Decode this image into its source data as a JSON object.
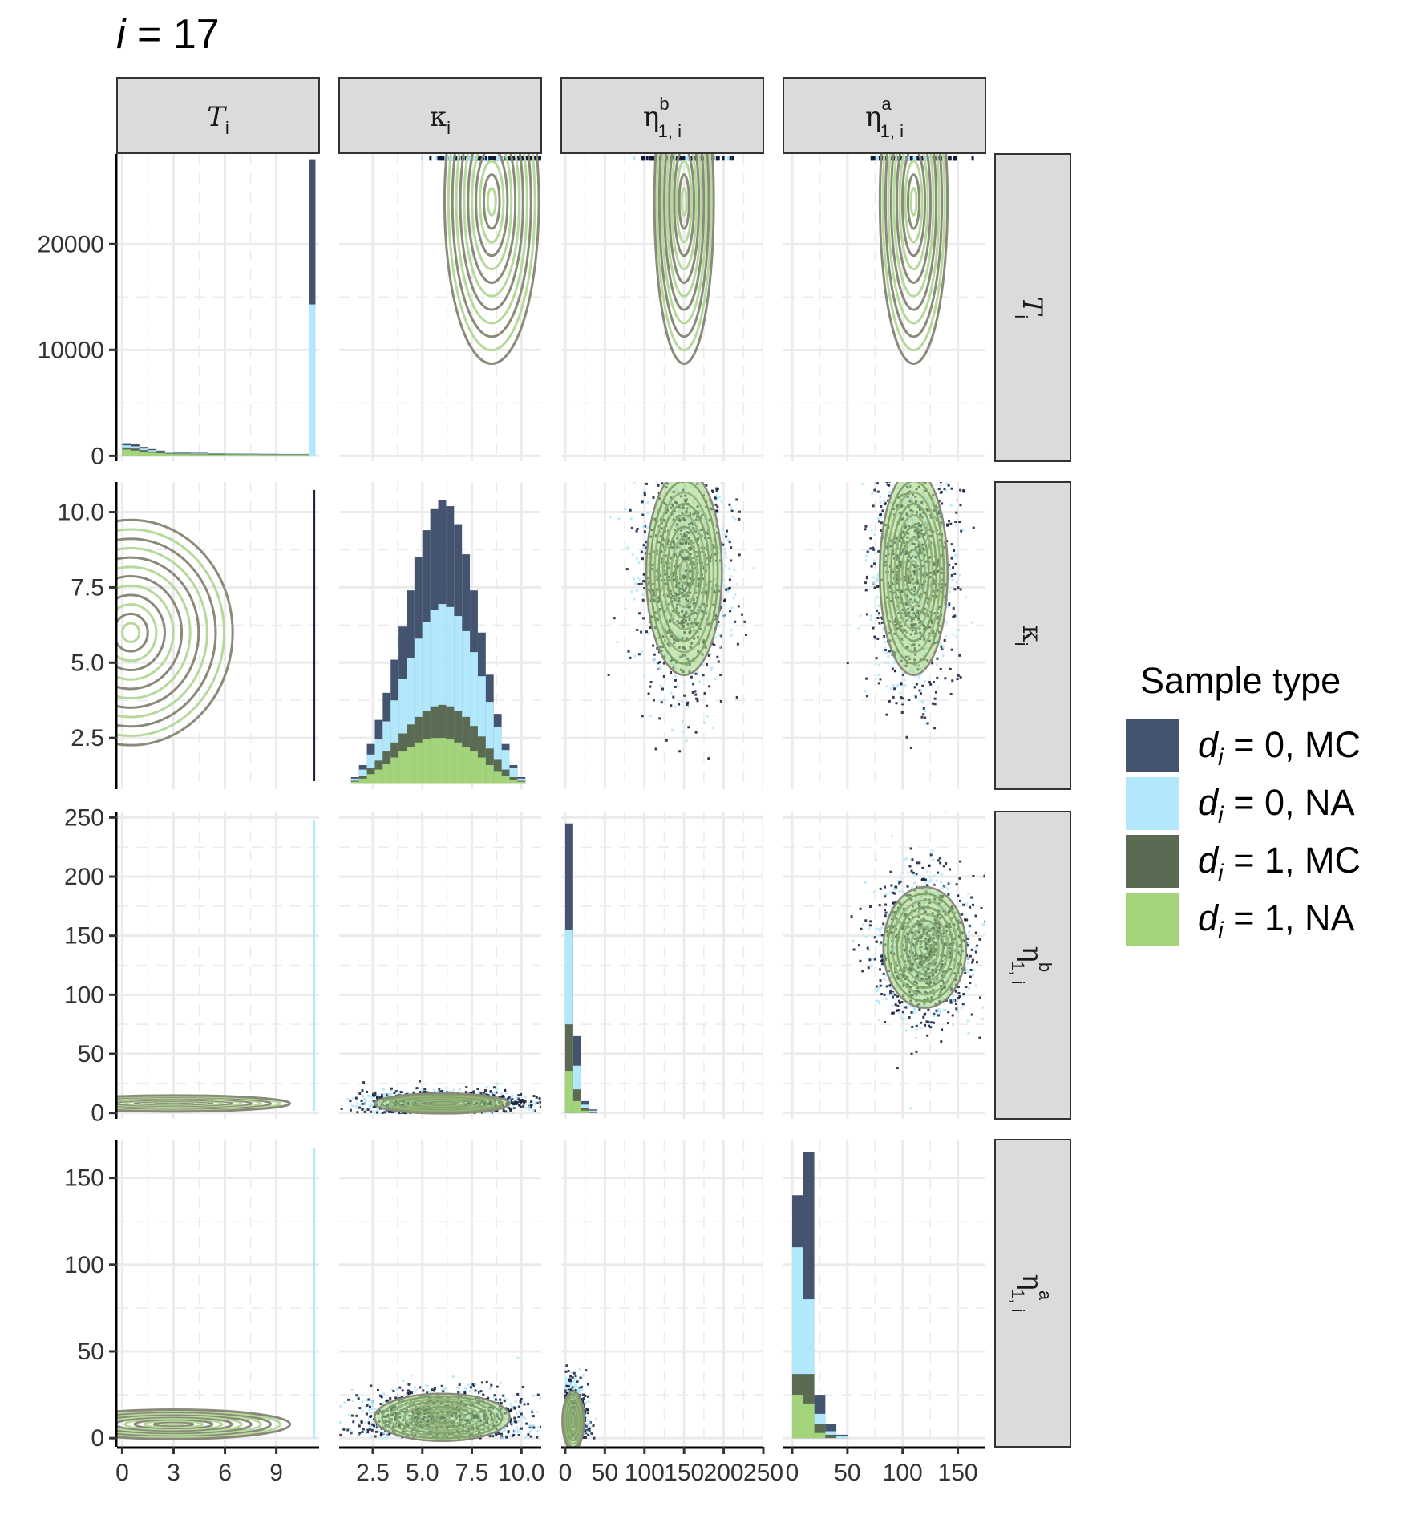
{
  "title": {
    "var": "i",
    "equals": " = 17"
  },
  "legend": {
    "title": "Sample type",
    "entries": [
      {
        "d": "d",
        "sub": "i",
        "rest": " = 0, MC",
        "color": "#44546f"
      },
      {
        "d": "d",
        "sub": "i",
        "rest": " = 0, NA",
        "color": "#b3e7fb"
      },
      {
        "d": "d",
        "sub": "i",
        "rest": " = 1, MC",
        "color": "#5b6b53"
      },
      {
        "d": "d",
        "sub": "i",
        "rest": " = 1, NA",
        "color": "#a3d47b"
      }
    ]
  },
  "variables": [
    {
      "sym": "T",
      "italic": true,
      "sub": "i",
      "sup": ""
    },
    {
      "sym": "κ",
      "italic": false,
      "sub": "i",
      "sup": ""
    },
    {
      "sym": "η",
      "italic": false,
      "sub": "1, i",
      "sup": "b"
    },
    {
      "sym": "η",
      "italic": false,
      "sub": "1, i",
      "sup": "a"
    }
  ],
  "chart_data": {
    "type": "pairs-matrix",
    "grid": true,
    "legend_position": "right",
    "colors": {
      "d0_MC": "#44546f",
      "d0_NA": "#b3e7fb",
      "d1_MC": "#5b6b53",
      "d1_NA": "#a3d47b",
      "contour_MC": "#8a8a7a",
      "contour_NA": "#b5d99a",
      "points_dark": "#0f1b38"
    },
    "axes": {
      "x": [
        {
          "var": "T_i",
          "range": [
            -0.3,
            11.5
          ],
          "ticks": [
            0,
            3,
            6,
            9
          ],
          "tick_labels": [
            "0",
            "3",
            "6",
            "9"
          ]
        },
        {
          "var": "kappa_i",
          "range": [
            0.8,
            11.0
          ],
          "ticks": [
            2.5,
            5.0,
            7.5,
            10.0
          ],
          "tick_labels": [
            "2.5",
            "5.0",
            "7.5",
            "10.0"
          ]
        },
        {
          "var": "eta_b",
          "range": [
            -5,
            250
          ],
          "ticks": [
            0,
            50,
            100,
            150,
            200,
            250
          ],
          "tick_labels": [
            "0",
            "50",
            "100",
            "150",
            "200",
            "250"
          ]
        },
        {
          "var": "eta_a",
          "range": [
            -8,
            175
          ],
          "ticks": [
            0,
            50,
            100,
            150
          ],
          "tick_labels": [
            "0",
            "50",
            "100",
            "150"
          ]
        }
      ],
      "y": [
        {
          "var": "T_i",
          "range": [
            -500,
            28500
          ],
          "ticks": [
            0,
            10000,
            20000
          ],
          "tick_labels": [
            "0",
            "10000",
            "20000"
          ]
        },
        {
          "var": "kappa_i",
          "range": [
            0.8,
            11.0
          ],
          "ticks": [
            2.5,
            5.0,
            7.5,
            10.0
          ],
          "tick_labels": [
            "2.5",
            "5.0",
            "7.5",
            "10.0"
          ]
        },
        {
          "var": "eta_b",
          "range": [
            -5,
            255
          ],
          "ticks": [
            0,
            50,
            100,
            150,
            200,
            250
          ],
          "tick_labels": [
            "0",
            "50",
            "100",
            "150",
            "200",
            "250"
          ]
        },
        {
          "var": "eta_a",
          "range": [
            -5,
            172
          ],
          "ticks": [
            0,
            50,
            100,
            150
          ],
          "tick_labels": [
            "0",
            "50",
            "100",
            "150"
          ]
        }
      ]
    },
    "histograms": [
      {
        "panel": "T_i",
        "bins_x": [
          0,
          0.5,
          1,
          1.5,
          2,
          2.5,
          3,
          4,
          5,
          6,
          7,
          8,
          9,
          10,
          11
        ],
        "stacked_tops": {
          "d1_NA": [
            600,
            500,
            400,
            300,
            250,
            200,
            170,
            150,
            130,
            120,
            110,
            100,
            100,
            100,
            0
          ],
          "d1_MC": [
            800,
            700,
            550,
            420,
            330,
            270,
            230,
            200,
            180,
            160,
            150,
            140,
            130,
            130,
            0
          ],
          "d0_NA": [
            1000,
            900,
            700,
            550,
            420,
            340,
            290,
            250,
            220,
            200,
            180,
            170,
            160,
            160,
            0
          ],
          "d0_MC": [
            1200,
            1100,
            850,
            650,
            500,
            400,
            340,
            300,
            260,
            230,
            210,
            200,
            190,
            190,
            0
          ]
        },
        "spike_at_max": {
          "x": 11.1,
          "d1_NA": 0,
          "d1_MC": 0,
          "d0_NA": 14300,
          "d0_MC": 28000
        }
      },
      {
        "panel": "kappa_i",
        "bin_centers": [
          1.2,
          1.6,
          2.0,
          2.4,
          2.8,
          3.2,
          3.6,
          4.0,
          4.4,
          4.8,
          5.2,
          5.6,
          6.0,
          6.4,
          6.8,
          7.2,
          7.6,
          8.0,
          8.4,
          8.8,
          9.2,
          9.6,
          10.0,
          10.4
        ],
        "stacked_tops": {
          "d1_NA": [
            0.0,
            0.05,
            0.15,
            0.3,
            0.45,
            0.65,
            0.85,
            1.05,
            1.2,
            1.35,
            1.45,
            1.5,
            1.5,
            1.45,
            1.35,
            1.2,
            1.05,
            0.85,
            0.6,
            0.4,
            0.25,
            0.12,
            0.05,
            0.0
          ],
          "d1_MC": [
            0.0,
            0.08,
            0.25,
            0.5,
            0.75,
            1.05,
            1.35,
            1.65,
            1.95,
            2.2,
            2.4,
            2.55,
            2.6,
            2.55,
            2.4,
            2.2,
            1.9,
            1.55,
            1.15,
            0.8,
            0.45,
            0.2,
            0.08,
            0.0
          ],
          "d0_NA": [
            0.0,
            0.15,
            0.45,
            0.95,
            1.45,
            2.05,
            2.75,
            3.45,
            4.15,
            4.8,
            5.35,
            5.75,
            5.95,
            5.85,
            5.55,
            5.05,
            4.35,
            3.55,
            2.7,
            1.85,
            1.1,
            0.5,
            0.15,
            0.0
          ],
          "d0_MC": [
            0.0,
            0.2,
            0.6,
            1.3,
            2.1,
            3.0,
            4.1,
            5.2,
            6.4,
            7.5,
            8.4,
            9.1,
            9.4,
            9.2,
            8.6,
            7.6,
            6.4,
            5.0,
            3.6,
            2.3,
            1.3,
            0.6,
            0.2,
            0.0
          ]
        }
      },
      {
        "panel": "eta_b",
        "bin_lefts": [
          0,
          10,
          20,
          30
        ],
        "bin_width": 10,
        "stacked_tops": {
          "d1_NA": [
            35,
            10,
            2,
            0
          ],
          "d1_MC": [
            75,
            20,
            4,
            1
          ],
          "d0_NA": [
            155,
            40,
            7,
            2
          ],
          "d0_MC": [
            245,
            65,
            10,
            3
          ]
        }
      },
      {
        "panel": "eta_a",
        "bin_lefts": [
          0,
          10,
          20,
          30,
          40
        ],
        "bin_width": 10,
        "stacked_tops": {
          "d1_NA": [
            25,
            20,
            3,
            0,
            0
          ],
          "d1_MC": [
            37,
            37,
            8,
            2,
            0
          ],
          "d0_NA": [
            110,
            80,
            14,
            4,
            1
          ],
          "d0_MC": [
            140,
            165,
            25,
            8,
            2
          ]
        }
      }
    ],
    "scatter_panels": [
      {
        "x": "eta_b",
        "y": "kappa_i",
        "density_center": [
          150,
          8.0
        ],
        "spread": [
          28,
          2.0
        ]
      },
      {
        "x": "eta_a",
        "y": "kappa_i",
        "density_center": [
          110,
          8.0
        ],
        "spread": [
          18,
          2.0
        ]
      },
      {
        "x": "eta_a",
        "y": "eta_b",
        "density_center": [
          120,
          140
        ],
        "spread": [
          22,
          30
        ]
      },
      {
        "x": "kappa_i",
        "y": "eta_b",
        "density_center": [
          6.0,
          8
        ],
        "spread": [
          2.0,
          5
        ]
      },
      {
        "x": "kappa_i",
        "y": "eta_a",
        "density_center": [
          6.0,
          12
        ],
        "spread": [
          2.0,
          8
        ]
      },
      {
        "x": "eta_b",
        "y": "eta_a",
        "density_center": [
          10,
          10
        ],
        "spread": [
          8,
          10
        ]
      }
    ],
    "contour_panels": [
      {
        "x": "kappa_i",
        "y": "T_i",
        "center": [
          8.5,
          24000
        ],
        "spread": [
          1.4,
          9000
        ]
      },
      {
        "x": "eta_b",
        "y": "T_i",
        "center": [
          150,
          24000
        ],
        "spread": [
          22,
          9000
        ]
      },
      {
        "x": "eta_a",
        "y": "T_i",
        "center": [
          110,
          24000
        ],
        "spread": [
          18,
          9000
        ]
      },
      {
        "x": "T_i",
        "y": "kappa_i",
        "center": [
          0.5,
          6.0
        ],
        "spread": [
          3.5,
          2.2
        ]
      },
      {
        "x": "T_i",
        "y": "eta_b",
        "center": [
          3,
          8
        ],
        "spread": [
          4,
          4
        ]
      },
      {
        "x": "T_i",
        "y": "eta_a",
        "center": [
          3,
          8
        ],
        "spread": [
          4,
          5
        ]
      }
    ]
  }
}
